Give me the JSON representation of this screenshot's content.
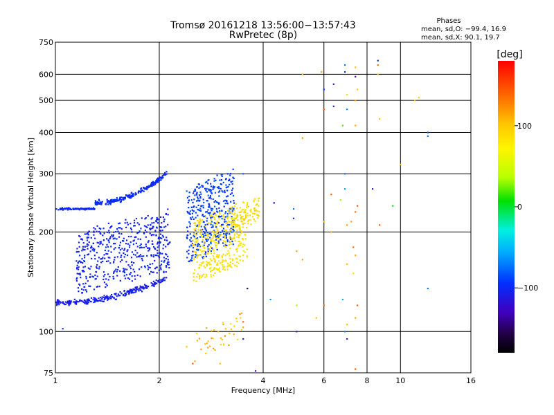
{
  "chart_data": {
    "type": "scatter",
    "title": "Tromsø 20161218 13:56:00−13:57:43",
    "subtitle": "RwPretec (8p)",
    "xlabel": "Frequency [MHz]",
    "ylabel": "Stationary phase Virtual Height [km]",
    "x_scale": "log",
    "y_scale": "log",
    "xlim": [
      1,
      16
    ],
    "ylim": [
      75,
      750
    ],
    "x_ticks": [
      "1",
      "2",
      "4",
      "6",
      "8",
      "10",
      "16"
    ],
    "x_tick_values": [
      1,
      2,
      4,
      6,
      8,
      10,
      16
    ],
    "y_ticks": [
      "75",
      "100",
      "200",
      "300",
      "400",
      "500",
      "600",
      "750"
    ],
    "y_tick_values": [
      75,
      100,
      200,
      300,
      400,
      500,
      600,
      750
    ],
    "grid": true,
    "stats": {
      "heading": "Phases",
      "line_o": "mean, sd,O: −99.4, 16.9",
      "line_x": "mean, sd,X:  90.1, 19.7"
    },
    "colorbar": {
      "label": "[deg]",
      "ticks": [
        "100",
        "0",
        "−100"
      ],
      "tick_values": [
        100,
        0,
        -100
      ],
      "range": [
        -180,
        180
      ]
    },
    "clusters": [
      {
        "name": "o-trace-lower",
        "shape": "curve",
        "f0": 1.0,
        "f1": 2.1,
        "h0": 122,
        "h1": 145,
        "spread": 0.06,
        "phase": -105,
        "psd": 12,
        "count": 260
      },
      {
        "name": "o-trace-body",
        "shape": "band",
        "f0": 1.15,
        "f1": 2.15,
        "h0": 130,
        "h1": 200,
        "spread": 0.08,
        "phase": -100,
        "psd": 14,
        "count": 520
      },
      {
        "name": "o-trace-upper",
        "shape": "curve",
        "f0": 1.0,
        "f1": 1.3,
        "h0": 235,
        "h1": 235,
        "spread": 0.02,
        "phase": -95,
        "psd": 10,
        "count": 90
      },
      {
        "name": "o-trace-top",
        "shape": "curve",
        "f0": 1.3,
        "f1": 2.1,
        "h0": 245,
        "h1": 300,
        "spread": 0.05,
        "phase": -95,
        "psd": 12,
        "count": 220
      },
      {
        "name": "o-trace-f2",
        "shape": "band",
        "f0": 2.4,
        "f1": 3.3,
        "h0": 160,
        "h1": 270,
        "spread": 0.07,
        "phase": -85,
        "psd": 25,
        "count": 420
      },
      {
        "name": "x-trace",
        "shape": "band",
        "f0": 2.5,
        "f1": 3.6,
        "h0": 140,
        "h1": 215,
        "spread": 0.05,
        "phase": 95,
        "psd": 15,
        "count": 380
      },
      {
        "name": "x-trace-top",
        "shape": "band",
        "f0": 3.3,
        "f1": 3.9,
        "h0": 190,
        "h1": 225,
        "spread": 0.04,
        "phase": 100,
        "psd": 12,
        "count": 80
      },
      {
        "name": "low-echo",
        "shape": "band",
        "f0": 2.5,
        "f1": 3.5,
        "h0": 80,
        "h1": 100,
        "spread": 0.04,
        "phase": 110,
        "psd": 30,
        "count": 40
      }
    ],
    "scatter_points": [
      {
        "f": 5.2,
        "h": 600,
        "phase": 110
      },
      {
        "f": 5.9,
        "h": 610,
        "phase": 120
      },
      {
        "f": 6.0,
        "h": 540,
        "phase": -90
      },
      {
        "f": 6.0,
        "h": 470,
        "phase": 150
      },
      {
        "f": 6.4,
        "h": 560,
        "phase": -120
      },
      {
        "f": 6.4,
        "h": 480,
        "phase": -110
      },
      {
        "f": 6.9,
        "h": 640,
        "phase": -60
      },
      {
        "f": 6.9,
        "h": 610,
        "phase": -90
      },
      {
        "f": 7.0,
        "h": 520,
        "phase": 100
      },
      {
        "f": 7.0,
        "h": 470,
        "phase": -60
      },
      {
        "f": 6.8,
        "h": 420,
        "phase": 40
      },
      {
        "f": 7.4,
        "h": 630,
        "phase": 110
      },
      {
        "f": 7.4,
        "h": 590,
        "phase": -130
      },
      {
        "f": 7.5,
        "h": 540,
        "phase": 110
      },
      {
        "f": 7.4,
        "h": 500,
        "phase": 120
      },
      {
        "f": 7.4,
        "h": 420,
        "phase": 120
      },
      {
        "f": 8.6,
        "h": 660,
        "phase": -100
      },
      {
        "f": 8.6,
        "h": 640,
        "phase": 140
      },
      {
        "f": 8.6,
        "h": 600,
        "phase": 110
      },
      {
        "f": 8.7,
        "h": 440,
        "phase": 110
      },
      {
        "f": 11.0,
        "h": 500,
        "phase": 110
      },
      {
        "f": 11.3,
        "h": 510,
        "phase": 105
      },
      {
        "f": 12.0,
        "h": 400,
        "phase": -80
      },
      {
        "f": 12.0,
        "h": 390,
        "phase": -60
      },
      {
        "f": 5.2,
        "h": 385,
        "phase": 130
      },
      {
        "f": 10.0,
        "h": 320,
        "phase": 110
      },
      {
        "f": 8.3,
        "h": 270,
        "phase": -110
      },
      {
        "f": 9.5,
        "h": 240,
        "phase": 30
      },
      {
        "f": 6.9,
        "h": 300,
        "phase": -60
      },
      {
        "f": 6.9,
        "h": 270,
        "phase": -40
      },
      {
        "f": 6.3,
        "h": 260,
        "phase": 150
      },
      {
        "f": 6.7,
        "h": 250,
        "phase": 60
      },
      {
        "f": 7.5,
        "h": 240,
        "phase": 150
      },
      {
        "f": 7.4,
        "h": 230,
        "phase": 140
      },
      {
        "f": 4.9,
        "h": 235,
        "phase": -60
      },
      {
        "f": 4.3,
        "h": 245,
        "phase": -120
      },
      {
        "f": 4.9,
        "h": 220,
        "phase": -100
      },
      {
        "f": 6.0,
        "h": 215,
        "phase": 110
      },
      {
        "f": 6.3,
        "h": 200,
        "phase": 120
      },
      {
        "f": 7.0,
        "h": 210,
        "phase": 120
      },
      {
        "f": 7.2,
        "h": 215,
        "phase": 120
      },
      {
        "f": 8.7,
        "h": 210,
        "phase": 150
      },
      {
        "f": 7.3,
        "h": 180,
        "phase": 140
      },
      {
        "f": 7.4,
        "h": 170,
        "phase": 120
      },
      {
        "f": 5.0,
        "h": 175,
        "phase": 120
      },
      {
        "f": 5.2,
        "h": 165,
        "phase": 120
      },
      {
        "f": 7.0,
        "h": 160,
        "phase": 110
      },
      {
        "f": 7.3,
        "h": 150,
        "phase": 100
      },
      {
        "f": 3.6,
        "h": 135,
        "phase": -160
      },
      {
        "f": 4.2,
        "h": 125,
        "phase": -50
      },
      {
        "f": 5.0,
        "h": 120,
        "phase": 60
      },
      {
        "f": 6.0,
        "h": 120,
        "phase": 140
      },
      {
        "f": 6.8,
        "h": 125,
        "phase": -40
      },
      {
        "f": 7.5,
        "h": 120,
        "phase": 150
      },
      {
        "f": 12.0,
        "h": 135,
        "phase": -60
      },
      {
        "f": 5.7,
        "h": 110,
        "phase": 110
      },
      {
        "f": 7.4,
        "h": 110,
        "phase": 120
      },
      {
        "f": 7.0,
        "h": 105,
        "phase": 110
      },
      {
        "f": 5.0,
        "h": 100,
        "phase": -100
      },
      {
        "f": 6.9,
        "h": 100,
        "phase": -60
      },
      {
        "f": 7.0,
        "h": 95,
        "phase": -120
      },
      {
        "f": 7.4,
        "h": 77,
        "phase": 150
      },
      {
        "f": 3.5,
        "h": 107,
        "phase": 140
      },
      {
        "f": 3.5,
        "h": 103,
        "phase": 120
      },
      {
        "f": 3.8,
        "h": 76,
        "phase": -130
      },
      {
        "f": 1.05,
        "h": 102,
        "phase": -90
      },
      {
        "f": 1.0,
        "h": 105,
        "phase": -100
      },
      {
        "f": 1.3,
        "h": 75,
        "phase": 120
      },
      {
        "f": 2.4,
        "h": 90,
        "phase": 110
      },
      {
        "f": 2.5,
        "h": 80,
        "phase": 150
      },
      {
        "f": 3.0,
        "h": 80,
        "phase": 110
      },
      {
        "f": 3.5,
        "h": 95,
        "phase": -100
      },
      {
        "f": 3.1,
        "h": 97,
        "phase": 130
      },
      {
        "f": 2.9,
        "h": 88,
        "phase": 120
      },
      {
        "f": 3.5,
        "h": 300,
        "phase": -70
      }
    ]
  }
}
